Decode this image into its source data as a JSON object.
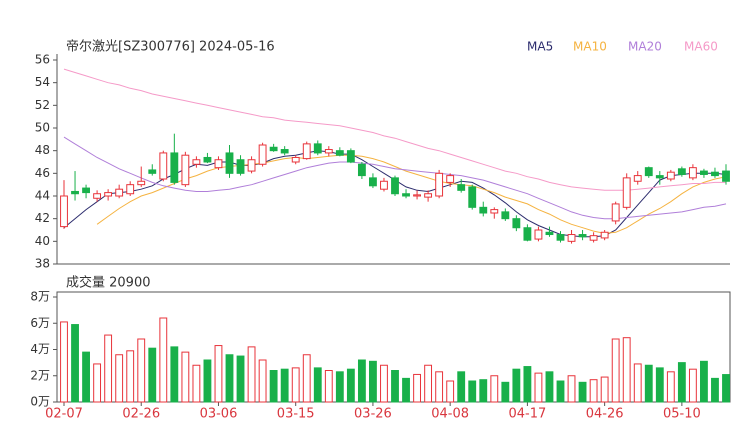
{
  "chart_data": [
    {
      "type": "candlestick",
      "title": "帝尔激光[SZ300776] 2024-05-16",
      "categories": [
        "02-07",
        null,
        null,
        null,
        null,
        null,
        null,
        "02-26",
        null,
        null,
        null,
        null,
        null,
        null,
        "03-06",
        null,
        null,
        null,
        null,
        null,
        null,
        "03-15",
        null,
        null,
        null,
        null,
        null,
        null,
        "03-26",
        null,
        null,
        null,
        null,
        null,
        null,
        "04-08",
        null,
        null,
        null,
        null,
        null,
        null,
        "04-17",
        null,
        null,
        null,
        null,
        null,
        null,
        "04-26",
        null,
        null,
        null,
        null,
        null,
        null,
        "05-10",
        null,
        null,
        null,
        null
      ],
      "open": [
        41.3,
        44.4,
        44.7,
        43.8,
        44.0,
        44.0,
        44.2,
        45.0,
        46.3,
        45.5,
        47.8,
        45.0,
        46.8,
        47.4,
        46.5,
        47.8,
        47.2,
        46.2,
        46.8,
        48.3,
        48.1,
        47.0,
        47.3,
        48.6,
        47.8,
        48.0,
        48.0,
        46.8,
        45.6,
        44.6,
        45.6,
        44.2,
        44.0,
        43.9,
        44.0,
        45.2,
        45.0,
        44.8,
        43.0,
        42.5,
        42.6,
        42.0,
        41.2,
        40.2,
        40.8,
        40.6,
        40.0,
        40.6,
        40.1,
        40.3,
        41.8,
        43.0,
        45.3,
        46.5,
        45.8,
        45.5,
        46.4,
        45.6,
        46.2,
        46.1,
        46.2
      ],
      "high": [
        45.4,
        46.2,
        45.0,
        44.5,
        44.6,
        45.0,
        45.3,
        46.6,
        46.8,
        48.0,
        49.5,
        47.9,
        47.5,
        47.8,
        47.5,
        48.5,
        47.6,
        47.5,
        48.7,
        48.6,
        48.4,
        47.6,
        48.8,
        48.9,
        48.4,
        48.3,
        48.2,
        47.0,
        46.0,
        45.6,
        45.8,
        44.6,
        44.5,
        44.5,
        46.3,
        46.0,
        45.5,
        45.0,
        43.5,
        43.0,
        42.9,
        42.3,
        41.5,
        41.3,
        41.3,
        40.9,
        41.0,
        41.0,
        40.8,
        41.0,
        43.5,
        46.0,
        46.2,
        46.6,
        46.2,
        46.3,
        46.6,
        46.8,
        46.4,
        46.5,
        46.8
      ],
      "low": [
        41.1,
        43.6,
        43.8,
        43.5,
        43.6,
        43.8,
        44.0,
        44.8,
        45.8,
        45.3,
        45.0,
        44.8,
        46.5,
        46.9,
        46.3,
        45.6,
        45.8,
        46.0,
        46.6,
        47.9,
        47.6,
        46.8,
        47.2,
        47.6,
        47.5,
        47.5,
        46.9,
        45.5,
        44.7,
        44.4,
        44.0,
        43.8,
        43.7,
        43.5,
        43.8,
        44.8,
        44.3,
        42.8,
        42.2,
        42.0,
        41.8,
        40.9,
        40.0,
        40.0,
        40.4,
        39.9,
        39.8,
        40.1,
        39.9,
        40.1,
        41.5,
        42.8,
        45.0,
        45.6,
        45.0,
        45.3,
        45.7,
        45.4,
        45.6,
        45.6,
        45.0
      ],
      "close": [
        44.0,
        44.2,
        44.3,
        44.2,
        44.3,
        44.6,
        45.0,
        45.3,
        46.0,
        47.8,
        45.2,
        47.6,
        47.2,
        47.0,
        47.2,
        46.0,
        46.0,
        47.2,
        48.5,
        48.0,
        47.8,
        47.4,
        48.6,
        47.8,
        48.1,
        47.6,
        47.0,
        45.8,
        44.9,
        45.3,
        44.2,
        44.0,
        44.1,
        44.2,
        46.0,
        45.8,
        44.5,
        43.0,
        42.5,
        42.8,
        42.0,
        41.2,
        40.1,
        41.0,
        40.6,
        40.1,
        40.6,
        40.4,
        40.5,
        40.8,
        43.3,
        45.6,
        45.8,
        45.8,
        45.6,
        46.1,
        45.9,
        46.5,
        45.9,
        45.8,
        45.3
      ],
      "up_color": "#e8333a",
      "down_color": "#18b04a",
      "ylim": [
        38,
        56
      ],
      "yticks": [
        38,
        40,
        42,
        44,
        46,
        48,
        50,
        52,
        54,
        56
      ],
      "series": [
        {
          "name": "MA5",
          "color": "#2d2d6e",
          "values": [
            41.2,
            42.0,
            42.8,
            43.5,
            44.2,
            44.3,
            44.4,
            44.6,
            44.9,
            45.5,
            45.9,
            46.4,
            46.8,
            46.7,
            47.0,
            47.0,
            46.7,
            46.7,
            46.9,
            47.3,
            47.5,
            47.6,
            47.8,
            48.0,
            47.9,
            47.7,
            47.7,
            47.2,
            46.6,
            46.0,
            45.4,
            44.8,
            44.5,
            44.4,
            44.7,
            45.0,
            45.3,
            45.2,
            44.7,
            44.1,
            43.4,
            42.6,
            41.9,
            41.4,
            41.0,
            40.6,
            40.5,
            40.4,
            40.4,
            40.5,
            41.0,
            42.1,
            43.2,
            44.3,
            45.4,
            45.8,
            45.9,
            46.0,
            46.0,
            46.0,
            45.9
          ]
        },
        {
          "name": "MA10",
          "color": "#f5b341",
          "values": [
            null,
            null,
            null,
            41.5,
            42.2,
            42.9,
            43.5,
            44.0,
            44.3,
            44.7,
            45.1,
            45.5,
            45.8,
            46.2,
            46.5,
            46.6,
            46.7,
            46.8,
            46.9,
            47.1,
            47.3,
            47.4,
            47.3,
            47.4,
            47.5,
            47.6,
            47.6,
            47.5,
            47.3,
            47.0,
            46.6,
            46.2,
            45.9,
            45.6,
            45.3,
            45.1,
            45.0,
            44.9,
            44.6,
            44.3,
            43.9,
            43.6,
            43.3,
            42.8,
            42.4,
            41.9,
            41.5,
            41.2,
            40.9,
            40.7,
            40.8,
            41.2,
            41.8,
            42.4,
            42.9,
            43.5,
            44.2,
            44.8,
            45.2,
            45.5,
            45.7
          ]
        },
        {
          "name": "MA20",
          "color": "#b07fd9",
          "values": [
            49.2,
            48.6,
            48.0,
            47.4,
            46.9,
            46.4,
            46.0,
            45.6,
            45.2,
            44.9,
            44.7,
            44.5,
            44.4,
            44.4,
            44.5,
            44.6,
            44.8,
            45.0,
            45.3,
            45.6,
            45.9,
            46.2,
            46.5,
            46.7,
            46.9,
            47.0,
            47.0,
            46.9,
            46.8,
            46.6,
            46.4,
            46.3,
            46.2,
            46.1,
            46.0,
            45.9,
            45.8,
            45.6,
            45.4,
            45.1,
            44.8,
            44.5,
            44.2,
            43.8,
            43.4,
            43.0,
            42.6,
            42.3,
            42.1,
            42.0,
            42.0,
            42.1,
            42.2,
            42.3,
            42.4,
            42.5,
            42.6,
            42.8,
            43.0,
            43.1,
            43.3
          ]
        },
        {
          "name": "MA60",
          "color": "#f59ac8",
          "values": [
            55.2,
            54.9,
            54.6,
            54.3,
            54.0,
            53.8,
            53.5,
            53.3,
            53.0,
            52.8,
            52.6,
            52.4,
            52.2,
            52.0,
            51.8,
            51.6,
            51.4,
            51.2,
            51.0,
            50.9,
            50.7,
            50.6,
            50.5,
            50.4,
            50.3,
            50.2,
            50.0,
            49.8,
            49.6,
            49.3,
            49.1,
            48.8,
            48.5,
            48.2,
            48.0,
            47.7,
            47.4,
            47.1,
            46.8,
            46.5,
            46.2,
            46.0,
            45.7,
            45.5,
            45.2,
            45.0,
            44.8,
            44.7,
            44.6,
            44.5,
            44.5,
            44.5,
            44.6,
            44.7,
            44.8,
            44.9,
            45.0,
            45.1,
            45.1,
            45.2,
            45.2
          ]
        }
      ]
    },
    {
      "type": "bar",
      "title": "成交量 20900",
      "values": [
        6.1,
        5.9,
        3.8,
        2.9,
        5.1,
        3.6,
        3.9,
        4.8,
        4.1,
        6.4,
        4.2,
        3.8,
        2.8,
        3.2,
        4.3,
        3.6,
        3.5,
        4.2,
        3.2,
        2.4,
        2.5,
        2.6,
        3.6,
        2.6,
        2.4,
        2.3,
        2.5,
        3.2,
        3.1,
        2.8,
        2.4,
        1.8,
        2.1,
        2.8,
        2.3,
        1.6,
        2.3,
        1.6,
        1.7,
        2.0,
        1.5,
        2.5,
        2.7,
        2.2,
        2.3,
        1.6,
        2.0,
        1.5,
        1.7,
        1.9,
        4.8,
        4.9,
        2.9,
        2.8,
        2.6,
        2.3,
        3.0,
        2.5,
        3.1,
        1.8,
        2.09
      ],
      "ylim": [
        0,
        8
      ],
      "yticks": [
        {
          "value": 0,
          "label": "0万"
        },
        {
          "value": 2,
          "label": "2万"
        },
        {
          "value": 4,
          "label": "4万"
        },
        {
          "value": 6,
          "label": "6万"
        },
        {
          "value": 8,
          "label": "8万"
        }
      ]
    }
  ]
}
